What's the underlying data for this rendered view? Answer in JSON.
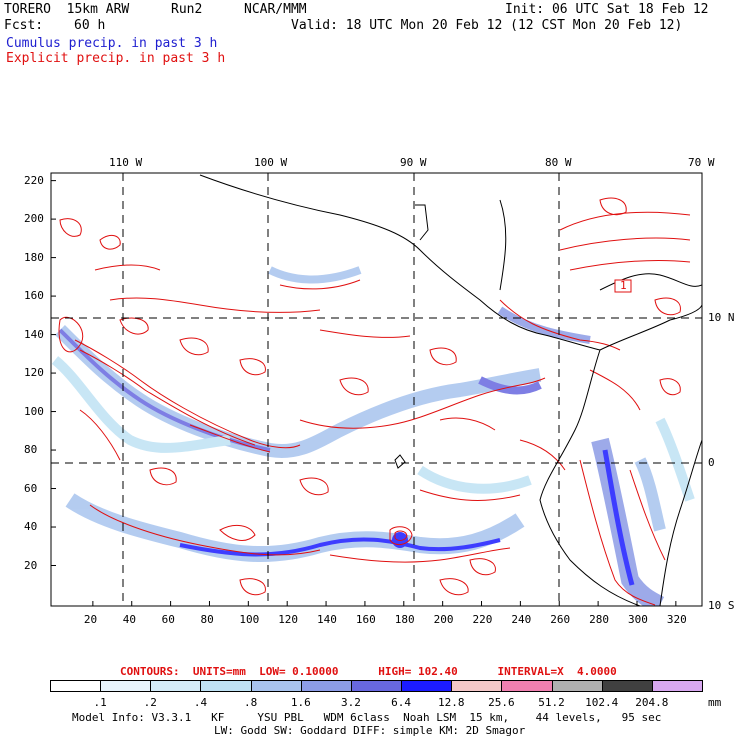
{
  "header": {
    "model": "TORERO  15km ARW",
    "run": "Run2",
    "org": "NCAR/MMM",
    "init": "Init: 06 UTC Sat 18 Feb 12",
    "fcst_label": "Fcst:",
    "fcst_value": "60 h",
    "valid": "Valid: 18 UTC Mon 20 Feb 12 (12 CST Mon 20 Feb 12)",
    "line1": "Cumulus precip. in past 3 h",
    "line2": "Explicit precip. in past 3 h"
  },
  "map": {
    "lon_labels": [
      "110 W",
      "100 W",
      "90 W",
      "80 W",
      "70 W"
    ],
    "lat_labels": [
      "10 N",
      "0",
      "10 S"
    ],
    "y_ticks": [
      "220",
      "200",
      "180",
      "160",
      "140",
      "120",
      "100",
      "80",
      "60",
      "40",
      "20"
    ],
    "x_ticks": [
      "20",
      "40",
      "60",
      "80",
      "100",
      "120",
      "140",
      "160",
      "180",
      "200",
      "220",
      "240",
      "260",
      "280",
      "300",
      "320"
    ],
    "contour_label": "1"
  },
  "contours_info": {
    "text": "CONTOURS:  UNITS=mm  LOW= 0.10000      HIGH= 102.40      INTERVAL=X  4.0000"
  },
  "legend": {
    "labels": [
      ".1",
      ".2",
      ".4",
      ".8",
      "1.6",
      "3.2",
      "6.4",
      "12.8",
      "25.6",
      "51.2",
      "102.4",
      "204.8"
    ],
    "unit": "mm",
    "colors": [
      "#ffffff",
      "#e8f4fc",
      "#d4ecf8",
      "#bfe2f4",
      "#a8c4ee",
      "#8c9ce6",
      "#6868e0",
      "#1c1cff",
      "#f4c8c8",
      "#f080b0",
      "#b0b0b0",
      "#404040",
      "#d8a8f0"
    ]
  },
  "footer": {
    "line1": "Model Info: V3.3.1   KF     YSU PBL   WDM 6class  Noah LSM  15 km,    44 levels,   95 sec",
    "line2": "LW: Godd SW: Goddard DIFF: simple KM: 2D Smagor"
  }
}
